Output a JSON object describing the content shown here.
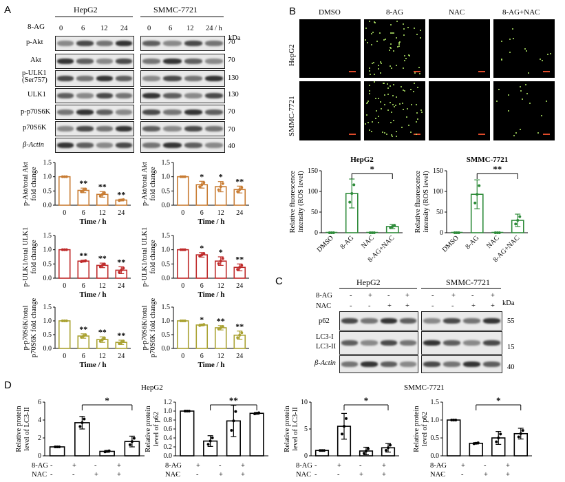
{
  "panels": {
    "a": "A",
    "b": "B",
    "c": "C",
    "d": "D"
  },
  "common": {
    "kda": "kDa",
    "h_unit": "/ h",
    "x_time": "Time / h",
    "sig1": "*",
    "sig2": "**",
    "minus": "-",
    "plus": "+"
  },
  "A": {
    "cell_lines": [
      "HepG2",
      "SMMC-7721"
    ],
    "treat_label": "8-AG",
    "timepoints": [
      "0",
      "6",
      "12",
      "24"
    ],
    "rows": [
      {
        "label": "p-Akt",
        "mw": "70"
      },
      {
        "label": "Akt",
        "mw": "70"
      },
      {
        "label": "p-ULK1",
        "label2": "(Ser757)",
        "mw": "130"
      },
      {
        "label": "ULK1",
        "mw": "130"
      },
      {
        "label": "p-p70S6K",
        "mw": "70"
      },
      {
        "label": "p70S6K",
        "mw": "70"
      },
      {
        "label": "β-Actin",
        "mw": "40"
      }
    ]
  },
  "B": {
    "cols": [
      "DMSO",
      "8-AG",
      "NAC",
      "8-AG+NAC"
    ],
    "rows": [
      "HepG2",
      "SMMC-7721"
    ]
  },
  "C": {
    "cell_lines": [
      "HepG2",
      "SMMC-7721"
    ],
    "treat_rows": [
      "8-AG",
      "NAC"
    ],
    "ag_signs": [
      "-",
      "+",
      "-",
      "+"
    ],
    "nac_signs": [
      "-",
      "-",
      "+",
      "+"
    ],
    "rows": [
      {
        "label": "p62",
        "mw": "55"
      },
      {
        "label": "LC3-I",
        "label2": "LC3-II",
        "mw": "15"
      },
      {
        "label": "β-Actin",
        "mw": "40"
      }
    ]
  },
  "D": {
    "titles": [
      "HepG2",
      "SMMC-7721"
    ]
  },
  "colors": {
    "orange": "#c87c33",
    "red": "#bf2a2a",
    "olive": "#aaa232",
    "green": "#2e8b3a",
    "black": "#000000"
  },
  "chart_data": [
    {
      "id": "A-pAkt-HepG2",
      "type": "bar",
      "categories": [
        "0",
        "6",
        "12",
        "24"
      ],
      "values": [
        1.0,
        0.52,
        0.38,
        0.18
      ],
      "errors": [
        0,
        0.08,
        0.1,
        0.03
      ],
      "sig": [
        "",
        "**",
        "**",
        "**"
      ],
      "ylabel": "p-Akt/total Akt fold change",
      "xlabel": "Time / h",
      "ylim": [
        0,
        1.5
      ],
      "yticks": [
        0,
        0.5,
        1.0,
        1.5
      ],
      "color": "#c87c33"
    },
    {
      "id": "A-pAkt-SMMC",
      "type": "bar",
      "categories": [
        "0",
        "6",
        "12",
        "24"
      ],
      "values": [
        1.0,
        0.72,
        0.65,
        0.55
      ],
      "errors": [
        0,
        0.12,
        0.18,
        0.12
      ],
      "sig": [
        "",
        "*",
        "*",
        "**"
      ],
      "ylabel": "p-Akt/total Akt fold change",
      "xlabel": "Time / h",
      "ylim": [
        0,
        1.5
      ],
      "yticks": [
        0,
        0.5,
        1.0,
        1.5
      ],
      "color": "#c87c33"
    },
    {
      "id": "A-pULK1-HepG2",
      "type": "bar",
      "categories": [
        "0",
        "6",
        "12",
        "24"
      ],
      "values": [
        1.0,
        0.6,
        0.45,
        0.28
      ],
      "errors": [
        0,
        0.03,
        0.08,
        0.12
      ],
      "sig": [
        "",
        "**",
        "**",
        "**"
      ],
      "ylabel": "p-ULK1/total ULK1 fold change",
      "xlabel": "Time / h",
      "ylim": [
        0,
        1.5
      ],
      "yticks": [
        0,
        0.5,
        1.0,
        1.5
      ],
      "color": "#bf2a2a"
    },
    {
      "id": "A-pULK1-SMMC",
      "type": "bar",
      "categories": [
        "0",
        "6",
        "12",
        "24"
      ],
      "values": [
        1.0,
        0.82,
        0.6,
        0.38
      ],
      "errors": [
        0,
        0.08,
        0.15,
        0.12
      ],
      "sig": [
        "",
        "*",
        "*",
        "**"
      ],
      "ylabel": "p-ULK1/total ULK1 fold change",
      "xlabel": "Time / h",
      "ylim": [
        0,
        1.5
      ],
      "yticks": [
        0,
        0.5,
        1.0,
        1.5
      ],
      "color": "#bf2a2a"
    },
    {
      "id": "A-pp70-HepG2",
      "type": "bar",
      "categories": [
        "0",
        "6",
        "12",
        "24"
      ],
      "values": [
        1.0,
        0.45,
        0.32,
        0.22
      ],
      "errors": [
        0,
        0.08,
        0.1,
        0.08
      ],
      "sig": [
        "",
        "**",
        "**",
        "**"
      ],
      "ylabel": "p-p70S6K/total p70S6K fold change",
      "xlabel": "Time / h",
      "ylim": [
        0,
        1.5
      ],
      "yticks": [
        0,
        0.5,
        1.0,
        1.5
      ],
      "color": "#aaa232"
    },
    {
      "id": "A-pp70-SMMC",
      "type": "bar",
      "categories": [
        "0",
        "6",
        "12",
        "24"
      ],
      "values": [
        1.0,
        0.85,
        0.75,
        0.48
      ],
      "errors": [
        0,
        0.03,
        0.08,
        0.15
      ],
      "sig": [
        "",
        "*",
        "**",
        "**"
      ],
      "ylabel": "p-p70S6K/total p70S6K fold change",
      "xlabel": "Time / h",
      "ylim": [
        0,
        1.5
      ],
      "yticks": [
        0,
        0.5,
        1.0,
        1.5
      ],
      "color": "#aaa232"
    },
    {
      "id": "B-ROS-HepG2",
      "type": "bar",
      "categories": [
        "DMSO",
        "8-AG",
        "NAC",
        "8-AG+NAC"
      ],
      "values": [
        0,
        95,
        0,
        15
      ],
      "errors": [
        0,
        35,
        0,
        5
      ],
      "sig_bracket": {
        "from": 1,
        "to": 3,
        "label": "*"
      },
      "title": "HepG2",
      "ylabel": "Relative fluorescence intensity (ROS level)",
      "ylim": [
        0,
        150
      ],
      "yticks": [
        0,
        50,
        100,
        150
      ],
      "color": "#2e8b3a"
    },
    {
      "id": "B-ROS-SMMC",
      "type": "bar",
      "categories": [
        "DMSO",
        "8-AG",
        "NAC",
        "8-AG+NAC"
      ],
      "values": [
        0,
        93,
        0,
        30
      ],
      "errors": [
        0,
        35,
        0,
        15
      ],
      "sig_bracket": {
        "from": 1,
        "to": 3,
        "label": "**"
      },
      "title": "SMMC-7721",
      "ylabel": "Relative fluorescence intensity (ROS level)",
      "ylim": [
        0,
        150
      ],
      "yticks": [
        0,
        50,
        100,
        150
      ],
      "color": "#2e8b3a"
    },
    {
      "id": "D-LC3-HepG2",
      "type": "bar",
      "categories": [
        "1",
        "2",
        "3",
        "4"
      ],
      "values": [
        1.0,
        3.7,
        0.5,
        1.6
      ],
      "errors": [
        0,
        0.7,
        0.1,
        0.6
      ],
      "sig_bracket": {
        "from": 1,
        "to": 3,
        "label": "*"
      },
      "ylabel": "Relative protein level of LC3-II",
      "ylim": [
        0,
        6
      ],
      "yticks": [
        0,
        2,
        4,
        6
      ],
      "color": "#000000"
    },
    {
      "id": "D-p62-HepG2",
      "type": "bar",
      "categories": [
        "1",
        "2",
        "3",
        "4"
      ],
      "values": [
        1.0,
        0.33,
        0.78,
        0.95
      ],
      "errors": [
        0,
        0.12,
        0.35,
        0.02
      ],
      "sig_bracket": {
        "from": 1,
        "to": 3,
        "label": "**"
      },
      "ylabel": "Relative protein level of p62",
      "ylim": [
        0,
        1.2
      ],
      "yticks": [
        0,
        0.2,
        0.4,
        0.6,
        0.8,
        1.0,
        1.2
      ],
      "color": "#000000"
    },
    {
      "id": "D-LC3-SMMC",
      "type": "bar",
      "categories": [
        "1",
        "2",
        "3",
        "4"
      ],
      "values": [
        1.0,
        5.5,
        0.9,
        1.5
      ],
      "errors": [
        0,
        2.4,
        0.7,
        0.8
      ],
      "sig_bracket": {
        "from": 1,
        "to": 3,
        "label": "*"
      },
      "ylabel": "Relative protein level of LC3-II",
      "ylim": [
        0,
        10
      ],
      "yticks": [
        0,
        5,
        10
      ],
      "color": "#000000"
    },
    {
      "id": "D-p62-SMMC",
      "type": "bar",
      "categories": [
        "1",
        "2",
        "3",
        "4"
      ],
      "values": [
        1.0,
        0.35,
        0.5,
        0.62
      ],
      "errors": [
        0,
        0.02,
        0.18,
        0.15
      ],
      "sig_bracket": {
        "from": 1,
        "to": 3,
        "label": "*"
      },
      "ylabel": "Relative protein level of p62",
      "ylim": [
        0,
        1.5
      ],
      "yticks": [
        0,
        0.5,
        1.0,
        1.5
      ],
      "color": "#000000"
    }
  ]
}
